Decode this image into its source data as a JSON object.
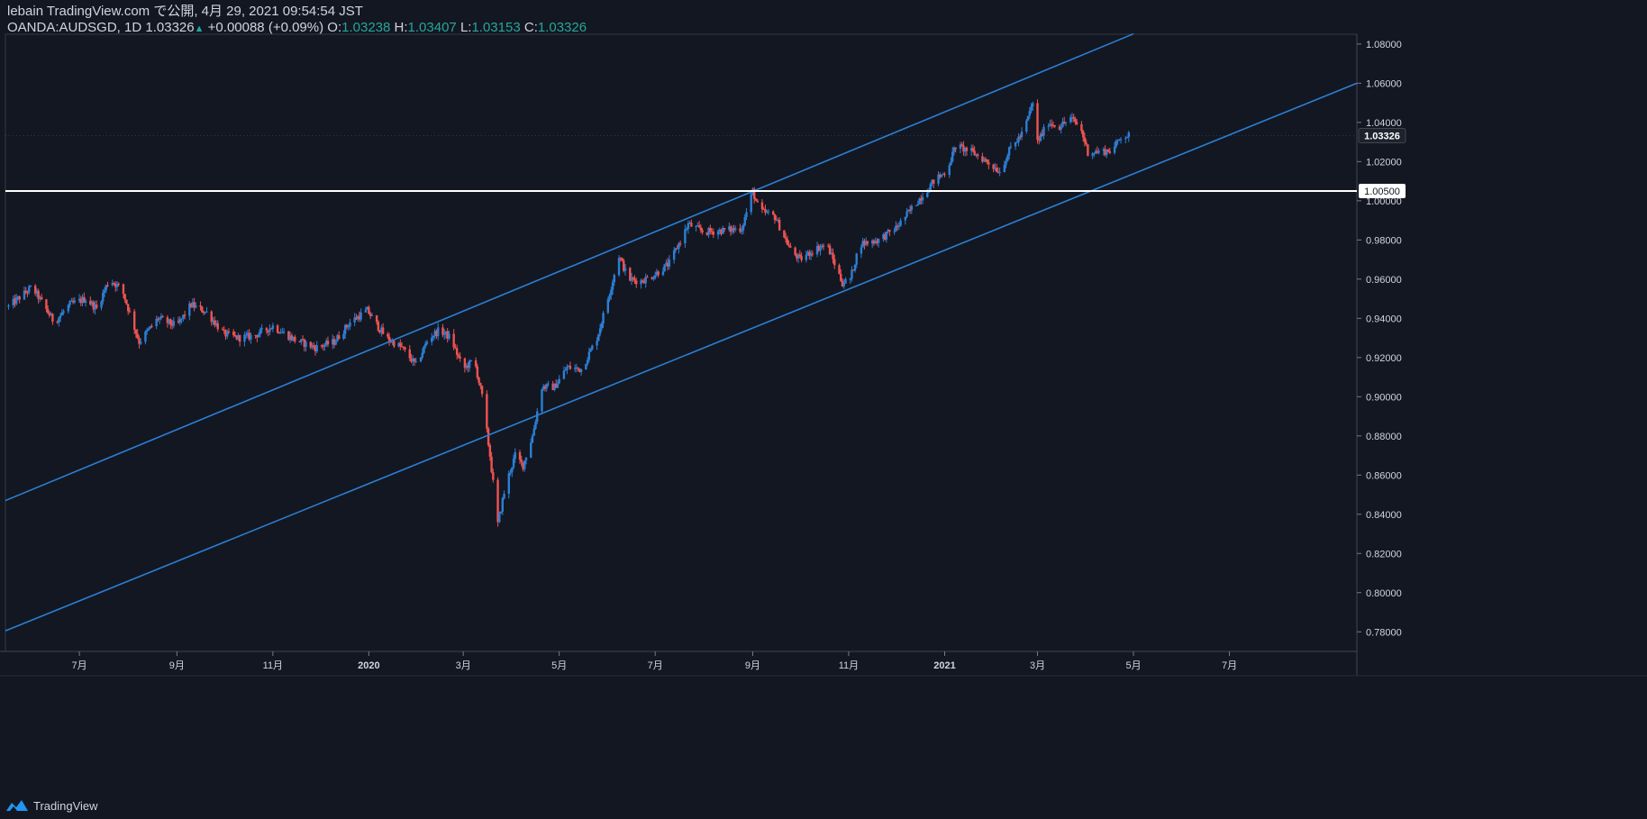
{
  "header": {
    "publish_line": "lebain TradingView.com で公開, 4月 29, 2021 09:54:54 JST",
    "symbol": "OANDA:AUDSGD, 1D",
    "last": "1.03326",
    "change": "+0.00088 (+0.09%)",
    "o_label": "O:",
    "o": "1.03238",
    "h_label": "H:",
    "h": "1.03407",
    "l_label": "L:",
    "l": "1.03153",
    "c_label": "C:",
    "c": "1.03326"
  },
  "footer": {
    "brand": "TradingView",
    "icon": "tradingview-logo-icon"
  },
  "colors": {
    "up": "#2b7fd4",
    "down": "#ef5350",
    "trendline": "#2b7fd4",
    "hline": "#ffffff",
    "background": "#131722",
    "axis_text": "#d1d4dc"
  },
  "chart_data": {
    "type": "candlestick",
    "symbol": "OANDA:AUDSGD",
    "interval": "1D",
    "x_range": [
      "2019-05-15",
      "2021-09-20"
    ],
    "ylim": [
      0.77,
      1.085
    ],
    "y_ticks": [
      "0.78000",
      "0.80000",
      "0.82000",
      "0.84000",
      "0.86000",
      "0.88000",
      "0.90000",
      "0.92000",
      "0.94000",
      "0.96000",
      "0.98000",
      "1.00000",
      "1.02000",
      "1.04000",
      "1.06000",
      "1.08000"
    ],
    "x_ticks": [
      {
        "date": "2019-07-01",
        "label": "7月"
      },
      {
        "date": "2019-09-01",
        "label": "9月"
      },
      {
        "date": "2019-11-01",
        "label": "11月"
      },
      {
        "date": "2020-01-01",
        "label": "2020"
      },
      {
        "date": "2020-03-01",
        "label": "3月"
      },
      {
        "date": "2020-05-01",
        "label": "5月"
      },
      {
        "date": "2020-07-01",
        "label": "7月"
      },
      {
        "date": "2020-09-01",
        "label": "9月"
      },
      {
        "date": "2020-11-01",
        "label": "11月"
      },
      {
        "date": "2021-01-01",
        "label": "2021"
      },
      {
        "date": "2021-03-01",
        "label": "3月"
      },
      {
        "date": "2021-05-01",
        "label": "5月"
      },
      {
        "date": "2021-07-01",
        "label": "7月"
      }
    ],
    "price_path": [
      [
        "2019-05-17",
        0.946
      ],
      [
        "2019-06-01",
        0.956
      ],
      [
        "2019-06-15",
        0.938
      ],
      [
        "2019-06-25",
        0.947
      ],
      [
        "2019-07-05",
        0.95
      ],
      [
        "2019-07-12",
        0.945
      ],
      [
        "2019-07-20",
        0.96
      ],
      [
        "2019-07-28",
        0.955
      ],
      [
        "2019-08-08",
        0.928
      ],
      [
        "2019-08-20",
        0.94
      ],
      [
        "2019-09-01",
        0.936
      ],
      [
        "2019-09-10",
        0.947
      ],
      [
        "2019-09-20",
        0.943
      ],
      [
        "2019-10-01",
        0.932
      ],
      [
        "2019-10-10",
        0.93
      ],
      [
        "2019-10-20",
        0.931
      ],
      [
        "2019-11-01",
        0.936
      ],
      [
        "2019-11-15",
        0.929
      ],
      [
        "2019-11-28",
        0.925
      ],
      [
        "2019-12-10",
        0.928
      ],
      [
        "2019-12-20",
        0.938
      ],
      [
        "2019-12-31",
        0.944
      ],
      [
        "2020-01-05",
        0.938
      ],
      [
        "2020-01-12",
        0.93
      ],
      [
        "2020-01-22",
        0.925
      ],
      [
        "2020-01-31",
        0.916
      ],
      [
        "2020-02-08",
        0.93
      ],
      [
        "2020-02-15",
        0.934
      ],
      [
        "2020-02-22",
        0.93
      ],
      [
        "2020-03-01",
        0.914
      ],
      [
        "2020-03-08",
        0.919
      ],
      [
        "2020-03-13",
        0.9
      ],
      [
        "2020-03-18",
        0.87
      ],
      [
        "2020-03-23",
        0.835
      ],
      [
        "2020-03-28",
        0.855
      ],
      [
        "2020-04-03",
        0.87
      ],
      [
        "2020-04-08",
        0.865
      ],
      [
        "2020-04-14",
        0.88
      ],
      [
        "2020-04-20",
        0.905
      ],
      [
        "2020-04-28",
        0.905
      ],
      [
        "2020-05-06",
        0.915
      ],
      [
        "2020-05-15",
        0.914
      ],
      [
        "2020-05-25",
        0.93
      ],
      [
        "2020-06-01",
        0.95
      ],
      [
        "2020-06-08",
        0.972
      ],
      [
        "2020-06-14",
        0.96
      ],
      [
        "2020-06-22",
        0.959
      ],
      [
        "2020-06-30",
        0.962
      ],
      [
        "2020-07-10",
        0.968
      ],
      [
        "2020-07-22",
        0.988
      ],
      [
        "2020-08-01",
        0.984
      ],
      [
        "2020-08-15",
        0.985
      ],
      [
        "2020-08-25",
        0.986
      ],
      [
        "2020-09-01",
        1.005
      ],
      [
        "2020-09-05",
        0.995
      ],
      [
        "2020-09-15",
        0.992
      ],
      [
        "2020-09-25",
        0.975
      ],
      [
        "2020-10-01",
        0.97
      ],
      [
        "2020-10-10",
        0.975
      ],
      [
        "2020-10-18",
        0.978
      ],
      [
        "2020-10-28",
        0.958
      ],
      [
        "2020-11-02",
        0.96
      ],
      [
        "2020-11-08",
        0.978
      ],
      [
        "2020-11-20",
        0.98
      ],
      [
        "2020-12-01",
        0.986
      ],
      [
        "2020-12-15",
        1.0
      ],
      [
        "2020-12-25",
        1.01
      ],
      [
        "2021-01-02",
        1.015
      ],
      [
        "2021-01-08",
        1.028
      ],
      [
        "2021-01-18",
        1.025
      ],
      [
        "2021-01-28",
        1.02
      ],
      [
        "2021-02-05",
        1.015
      ],
      [
        "2021-02-12",
        1.027
      ],
      [
        "2021-02-20",
        1.035
      ],
      [
        "2021-02-26",
        1.05
      ],
      [
        "2021-03-01",
        1.03
      ],
      [
        "2021-03-08",
        1.04
      ],
      [
        "2021-03-15",
        1.038
      ],
      [
        "2021-03-22",
        1.042
      ],
      [
        "2021-03-28",
        1.038
      ],
      [
        "2021-04-02",
        1.025
      ],
      [
        "2021-04-10",
        1.025
      ],
      [
        "2021-04-18",
        1.026
      ],
      [
        "2021-04-23",
        1.033
      ],
      [
        "2021-04-29",
        1.0333
      ]
    ],
    "trendlines": [
      {
        "from": [
          "2019-05-15",
          0.847
        ],
        "to": [
          "2021-05-01",
          1.0852
        ]
      },
      {
        "from": [
          "2019-05-15",
          0.7805
        ],
        "to": [
          "2021-09-20",
          1.06
        ]
      }
    ],
    "hline": {
      "price": 1.005,
      "label": "1.00500"
    },
    "last_price_label": "1.03326"
  }
}
